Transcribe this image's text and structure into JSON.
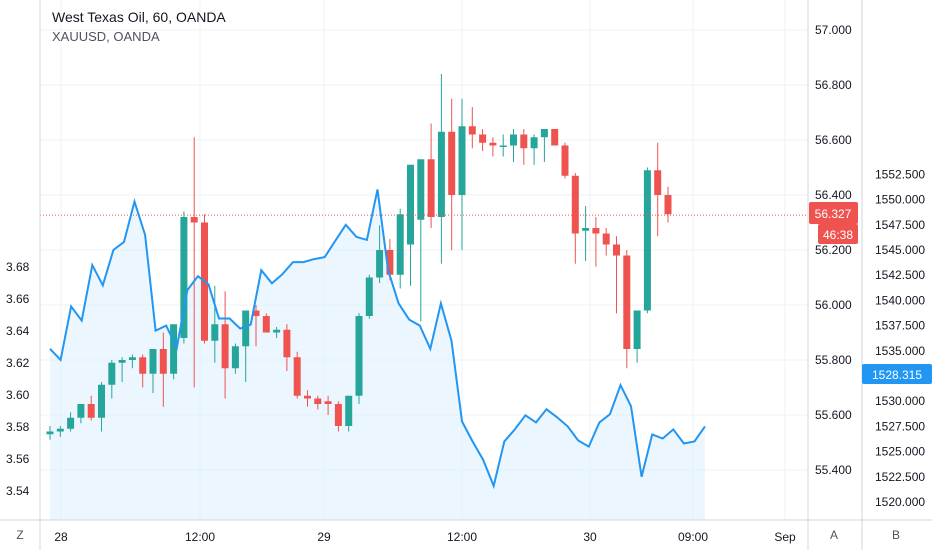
{
  "legend": {
    "main_title": "West Texas Oil, 60, OANDA",
    "overlay_title": "XAUUSD, OANDA"
  },
  "buttons": {
    "left": "Z",
    "mid": "A",
    "right": "B"
  },
  "colors": {
    "up": "#26a69a",
    "down": "#ef5350",
    "line": "#2196f3",
    "area": "#e3f2fd",
    "grid": "#eef0f3",
    "axis_line": "#d1d4dc",
    "text": "#131722",
    "price_line": "#ef5350",
    "gold_label": "#2196f3"
  },
  "chart_data": {
    "type": "candlestick+line",
    "x_tick_labels": [
      "28",
      "12:00",
      "29",
      "12:00",
      "30",
      "09:00",
      "Sep"
    ],
    "left_axis": {
      "ticks": [
        3.54,
        3.56,
        3.58,
        3.6,
        3.62,
        3.64,
        3.66,
        3.68
      ],
      "labels": [
        "3.54",
        "3.56",
        "3.58",
        "3.60",
        "3.62",
        "3.64",
        "3.66",
        "3.68"
      ]
    },
    "oil_axis": {
      "ticks": [
        55.4,
        55.6,
        55.8,
        56.0,
        56.2,
        56.4,
        56.6,
        56.8,
        57.0
      ],
      "labels": [
        "55.400",
        "55.600",
        "55.800",
        "56.000",
        "56.200",
        "56.400",
        "56.600",
        "56.800",
        "57.000"
      ],
      "range": [
        55.3,
        57.1
      ]
    },
    "gold_axis": {
      "ticks": [
        1520.0,
        1522.5,
        1525.0,
        1527.5,
        1530.0,
        1532.5,
        1535.0,
        1537.5,
        1540.0,
        1542.5,
        1545.0,
        1547.5,
        1550.0,
        1552.5
      ],
      "labels": [
        "1520.000",
        "1522.500",
        "1525.000",
        "1527.500",
        "1530.000",
        "1532.500",
        "1535.000",
        "1537.500",
        "1540.000",
        "1542.500",
        "1545.000",
        "1547.500",
        "1550.000",
        "1552.500"
      ],
      "range": [
        1518.5,
        1553.0
      ]
    },
    "current": {
      "oil_price": "56.327",
      "countdown": "46:38",
      "gold_price": "1528.315"
    },
    "oil_candles": [
      [
        55.53,
        55.56,
        55.51,
        55.54
      ],
      [
        55.54,
        55.56,
        55.52,
        55.55
      ],
      [
        55.55,
        55.61,
        55.54,
        55.59
      ],
      [
        55.59,
        55.64,
        55.57,
        55.64
      ],
      [
        55.64,
        55.67,
        55.58,
        55.59
      ],
      [
        55.59,
        55.72,
        55.54,
        55.71
      ],
      [
        55.71,
        55.8,
        55.66,
        55.79
      ],
      [
        55.79,
        55.81,
        55.72,
        55.8
      ],
      [
        55.8,
        55.82,
        55.77,
        55.81
      ],
      [
        55.81,
        55.82,
        55.7,
        55.75
      ],
      [
        55.75,
        55.84,
        55.68,
        55.84
      ],
      [
        55.84,
        55.9,
        55.63,
        55.75
      ],
      [
        55.75,
        55.93,
        55.73,
        55.93
      ],
      [
        55.88,
        56.34,
        55.86,
        56.32
      ],
      [
        56.32,
        56.61,
        55.7,
        56.3
      ],
      [
        56.3,
        56.33,
        55.86,
        55.87
      ],
      [
        55.87,
        56.07,
        55.79,
        55.93
      ],
      [
        55.93,
        56.05,
        55.66,
        55.77
      ],
      [
        55.77,
        55.86,
        55.75,
        55.85
      ],
      [
        55.85,
        55.97,
        55.72,
        55.98
      ],
      [
        55.98,
        56.0,
        55.85,
        55.96
      ],
      [
        55.96,
        55.97,
        55.9,
        55.9
      ],
      [
        55.9,
        55.92,
        55.88,
        55.91
      ],
      [
        55.91,
        55.93,
        55.76,
        55.81
      ],
      [
        55.81,
        55.83,
        55.66,
        55.67
      ],
      [
        55.67,
        55.69,
        55.63,
        55.66
      ],
      [
        55.66,
        55.67,
        55.62,
        55.64
      ],
      [
        55.65,
        55.67,
        55.6,
        55.64
      ],
      [
        55.64,
        55.65,
        55.54,
        55.56
      ],
      [
        55.56,
        55.67,
        55.54,
        55.67
      ],
      [
        55.67,
        55.97,
        55.64,
        55.96
      ],
      [
        55.96,
        56.11,
        55.95,
        56.1
      ],
      [
        56.1,
        56.29,
        56.08,
        56.2
      ],
      [
        56.2,
        56.24,
        56.09,
        56.11
      ],
      [
        56.11,
        56.35,
        56.06,
        56.33
      ],
      [
        56.22,
        56.51,
        56.07,
        56.51
      ],
      [
        56.31,
        56.52,
        55.94,
        56.53
      ],
      [
        56.53,
        56.66,
        56.28,
        56.32
      ],
      [
        56.32,
        56.84,
        56.15,
        56.63
      ],
      [
        56.63,
        56.75,
        56.2,
        56.4
      ],
      [
        56.4,
        56.75,
        56.2,
        56.65
      ],
      [
        56.65,
        56.72,
        56.57,
        56.62
      ],
      [
        56.62,
        56.64,
        56.56,
        56.59
      ],
      [
        56.59,
        56.61,
        56.54,
        56.58
      ],
      [
        56.58,
        56.62,
        56.54,
        56.58
      ],
      [
        56.58,
        56.64,
        56.52,
        56.62
      ],
      [
        56.62,
        56.64,
        56.51,
        56.57
      ],
      [
        56.57,
        56.62,
        56.51,
        56.61
      ],
      [
        56.61,
        56.64,
        56.52,
        56.64
      ],
      [
        56.64,
        56.64,
        56.58,
        56.58
      ],
      [
        56.58,
        56.59,
        56.46,
        56.47
      ],
      [
        56.47,
        56.48,
        56.15,
        56.26
      ],
      [
        56.27,
        56.36,
        56.16,
        56.28
      ],
      [
        56.28,
        56.32,
        56.14,
        56.26
      ],
      [
        56.26,
        56.28,
        56.18,
        56.22
      ],
      [
        56.22,
        56.25,
        55.97,
        56.18
      ],
      [
        56.18,
        56.2,
        55.77,
        55.84
      ],
      [
        55.84,
        55.95,
        55.79,
        55.98
      ],
      [
        55.98,
        56.5,
        55.97,
        56.49
      ],
      [
        56.49,
        56.59,
        56.25,
        56.4
      ],
      [
        56.4,
        56.43,
        56.3,
        56.33
      ]
    ],
    "gold_line": [
      1535.2,
      1534.1,
      1539.4,
      1538.0,
      1543.5,
      1541.5,
      1545.0,
      1545.8,
      1549.8,
      1546.5,
      1537.0,
      1537.5,
      1535.3,
      1541.0,
      1542.4,
      1541.6,
      1538.2,
      1538.2,
      1537.2,
      1537.6,
      1543.0,
      1541.7,
      1542.6,
      1543.8,
      1543.8,
      1544.1,
      1544.3,
      1545.9,
      1547.5,
      1546.3,
      1546.0,
      1551.0,
      1543.0,
      1539.7,
      1538.1,
      1537.5,
      1535.2,
      1539.7,
      1536.0,
      1528.0,
      1526.0,
      1524.2,
      1521.6,
      1526.0,
      1527.2,
      1528.6,
      1527.9,
      1529.2,
      1528.4,
      1527.5,
      1526.1,
      1525.5,
      1527.9,
      1528.7,
      1531.6,
      1529.5,
      1522.5,
      1526.7,
      1526.3,
      1527.2,
      1525.8,
      1526.0,
      1527.5
    ]
  }
}
